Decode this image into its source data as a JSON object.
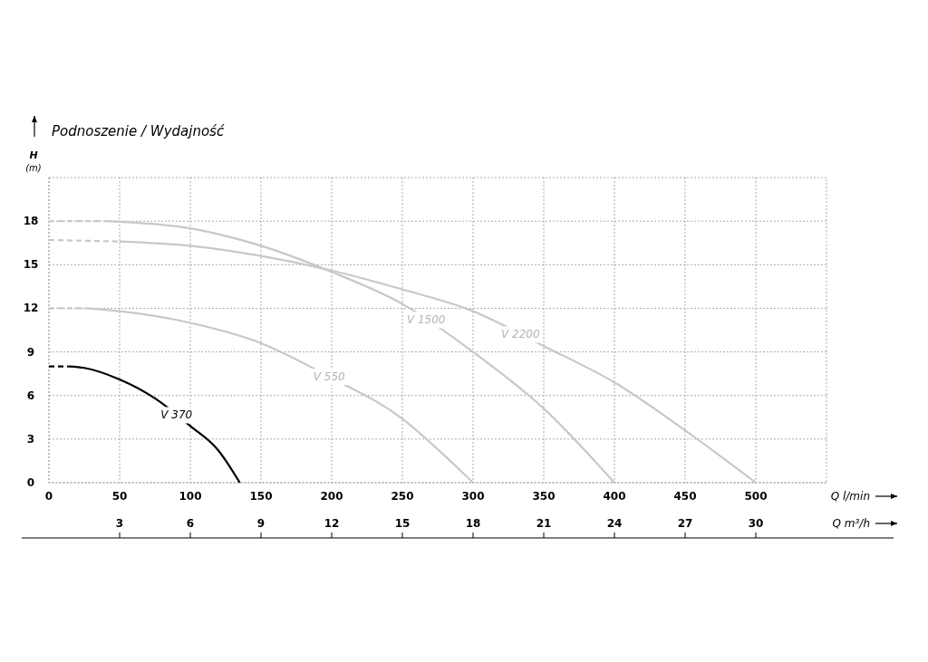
{
  "chart_data": {
    "type": "line",
    "title": "Podnoszenie / Wydajność",
    "xlabel": "Q l/min",
    "x2label": "Q m³/h",
    "ylabel": "H (m)",
    "xlim": [
      0,
      550
    ],
    "xticks": [
      0,
      50,
      100,
      150,
      200,
      250,
      300,
      350,
      400,
      450,
      500
    ],
    "x2lim": [
      0,
      33
    ],
    "x2ticks": [
      3,
      6,
      9,
      12,
      15,
      18,
      21,
      24,
      27,
      30
    ],
    "ylim": [
      0,
      21
    ],
    "yticks": [
      0,
      3,
      6,
      9,
      12,
      15,
      18
    ],
    "grid": true,
    "series": [
      {
        "name": "V 370",
        "color": "#000000",
        "line_style": "solid",
        "x": [
          14,
          25,
          50,
          75,
          100,
          120,
          135
        ],
        "values": [
          8.0,
          7.9,
          7.1,
          5.8,
          3.9,
          2.2,
          0
        ]
      },
      {
        "color": "#000000",
        "line_style": "dashed",
        "x": [
          0,
          14
        ],
        "values": [
          8.0,
          8.0
        ]
      },
      {
        "name": "V 550",
        "color": "#c8c8c8",
        "line_style": "solid",
        "x": [
          25,
          50,
          100,
          150,
          200,
          250,
          275,
          300
        ],
        "values": [
          12.0,
          11.8,
          11.0,
          9.6,
          7.2,
          4.4,
          2.3,
          0
        ]
      },
      {
        "color": "#c8c8c8",
        "line_style": "dashed",
        "x": [
          0,
          25
        ],
        "values": [
          12.0,
          12.0
        ]
      },
      {
        "name": "V 1500",
        "color": "#c8c8c8",
        "line_style": "solid",
        "x": [
          40,
          100,
          150,
          200,
          250,
          300,
          350,
          400
        ],
        "values": [
          18.0,
          17.5,
          16.3,
          14.5,
          12.3,
          9.0,
          5.1,
          0
        ]
      },
      {
        "color": "#c8c8c8",
        "line_style": "dashed",
        "x": [
          0,
          40
        ],
        "values": [
          18.0,
          18.0
        ]
      },
      {
        "name": "V 2200",
        "color": "#c8c8c8",
        "line_style": "solid",
        "x": [
          50,
          100,
          150,
          200,
          250,
          300,
          350,
          400,
          450,
          500
        ],
        "values": [
          16.6,
          16.3,
          15.6,
          14.6,
          13.3,
          11.8,
          9.4,
          6.9,
          3.6,
          0
        ]
      },
      {
        "color": "#c8c8c8",
        "line_style": "dashed",
        "x": [
          0,
          50
        ],
        "values": [
          16.7,
          16.6
        ]
      }
    ]
  }
}
